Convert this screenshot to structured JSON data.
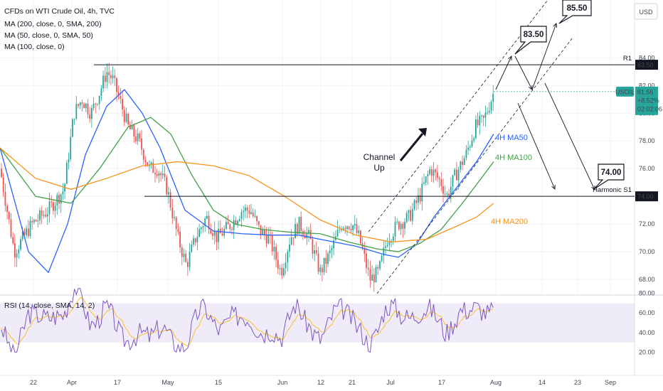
{
  "header": {
    "title": "CFDs on WTI Crude Oil, 4h, TVC",
    "indicators": [
      "MA (200, close, 0, SMA, 200)",
      "MA (50, close, 0, SMA, 50)",
      "MA (100, close, 0)"
    ],
    "currency_button": "USD"
  },
  "chart_data": {
    "type": "candlestick",
    "symbol": "USOIL",
    "price_axis": {
      "range": [
        66.8,
        86.0
      ],
      "ticks": [
        68,
        70,
        72,
        74,
        76,
        78,
        80,
        82,
        84
      ],
      "tick_labels": [
        "68.00",
        "70.00",
        "72.00",
        "74.00",
        "76.00",
        "78.00",
        "80.00",
        "82.00",
        "84.00"
      ]
    },
    "time_axis": {
      "labels": [
        "22",
        "Apr",
        "17",
        "May",
        "15",
        "Jun",
        "12",
        "21",
        "Jul",
        "17",
        "Aug",
        "14",
        "23",
        "Sep"
      ]
    },
    "last_price": {
      "label": "USOIL",
      "value": "81.56",
      "change": "+8.52%",
      "countdown": "02:02:06",
      "price": 81.56
    },
    "levels": [
      {
        "name": "R1",
        "price": 83.5,
        "badge": "83.50"
      },
      {
        "name": "Harmonic S1",
        "price": 74.0,
        "badge": "74.00"
      }
    ],
    "targets": [
      "83.50",
      "85.50",
      "74.00"
    ],
    "channel_label": "Channel Up",
    "ma_labels": [
      "4H MA50",
      "4H MA100",
      "4H MA200"
    ],
    "colors": {
      "up": "#26a69a",
      "down": "#ef5350",
      "ma50": "#2962ff",
      "ma100": "#43a047",
      "ma200": "#f7931a",
      "rsi": "#7e57c2",
      "rsi_ma": "#fbc02d"
    },
    "rsi": {
      "label": "RSI (14, close, SMA, 14, 2)",
      "ticks": [
        20,
        40,
        60,
        80
      ],
      "tick_labels": [
        "20.00",
        "40.00",
        "60.00",
        "80.00"
      ],
      "band": [
        30,
        70
      ],
      "last": 74
    }
  }
}
